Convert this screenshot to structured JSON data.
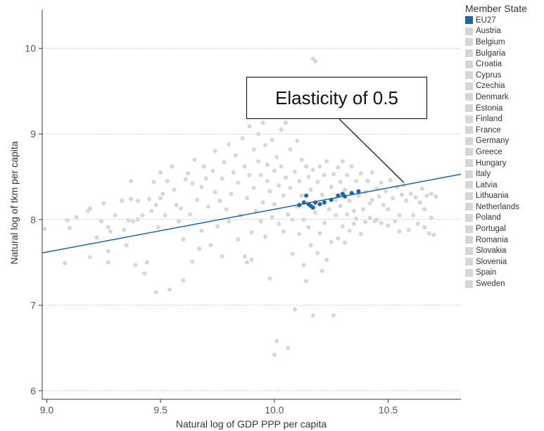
{
  "chart_data": {
    "type": "scatter",
    "title": "",
    "xlabel": "Natural log of GDP PPP per capita",
    "ylabel": "Natural log of tkm per capita",
    "xlim": [
      8.98,
      10.82
    ],
    "ylim": [
      5.9,
      10.45
    ],
    "xticks": [
      "9.0",
      "9.5",
      "10.0",
      "10.5"
    ],
    "yticks": [
      "6",
      "7",
      "8",
      "9",
      "10"
    ],
    "grid": "horizontal dotted",
    "legend": {
      "title": "Member State",
      "placement": "right",
      "entries": [
        {
          "name": "EU27",
          "color": "#1f63a8"
        },
        {
          "name": "Austria",
          "color": "#d6d6d6"
        },
        {
          "name": "Belgium",
          "color": "#d6d6d6"
        },
        {
          "name": "Bulgaria",
          "color": "#d6d6d6"
        },
        {
          "name": "Croatia",
          "color": "#d6d6d6"
        },
        {
          "name": "Cyprus",
          "color": "#d6d6d6"
        },
        {
          "name": "Czechia",
          "color": "#d6d6d6"
        },
        {
          "name": "Denmark",
          "color": "#d6d6d6"
        },
        {
          "name": "Estonia",
          "color": "#d6d6d6"
        },
        {
          "name": "Finland",
          "color": "#d6d6d6"
        },
        {
          "name": "France",
          "color": "#d6d6d6"
        },
        {
          "name": "Germany",
          "color": "#d6d6d6"
        },
        {
          "name": "Greece",
          "color": "#d6d6d6"
        },
        {
          "name": "Hungary",
          "color": "#d6d6d6"
        },
        {
          "name": "Italy",
          "color": "#d6d6d6"
        },
        {
          "name": "Latvia",
          "color": "#d6d6d6"
        },
        {
          "name": "Lithuania",
          "color": "#d6d6d6"
        },
        {
          "name": "Netherlands",
          "color": "#d6d6d6"
        },
        {
          "name": "Poland",
          "color": "#d6d6d6"
        },
        {
          "name": "Portugal",
          "color": "#d6d6d6"
        },
        {
          "name": "Romania",
          "color": "#d6d6d6"
        },
        {
          "name": "Slovakia",
          "color": "#d6d6d6"
        },
        {
          "name": "Slovenia",
          "color": "#d6d6d6"
        },
        {
          "name": "Spain",
          "color": "#d6d6d6"
        },
        {
          "name": "Sweden",
          "color": "#d6d6d6"
        }
      ]
    },
    "annotation": {
      "text": "Elasticity of 0.5",
      "points_to": [
        10.57,
        8.43
      ]
    },
    "trend_line": {
      "color": "#1f63a8",
      "points": [
        [
          8.98,
          7.61
        ],
        [
          10.82,
          8.53
        ]
      ]
    },
    "series": [
      {
        "name": "EU27",
        "color": "#1f63a8",
        "points": [
          [
            10.11,
            8.17
          ],
          [
            10.13,
            8.2
          ],
          [
            10.14,
            8.28
          ],
          [
            10.15,
            8.18
          ],
          [
            10.16,
            8.16
          ],
          [
            10.17,
            8.14
          ],
          [
            10.18,
            8.2
          ],
          [
            10.2,
            8.18
          ],
          [
            10.22,
            8.2
          ],
          [
            10.25,
            8.23
          ],
          [
            10.28,
            8.28
          ],
          [
            10.3,
            8.3
          ],
          [
            10.31,
            8.27
          ],
          [
            10.34,
            8.31
          ],
          [
            10.37,
            8.33
          ]
        ]
      },
      {
        "name": "Member states",
        "color": "#d6d6d6",
        "points": [
          [
            8.99,
            7.89
          ],
          [
            9.08,
            7.49
          ],
          [
            9.09,
            7.99
          ],
          [
            9.1,
            7.9
          ],
          [
            9.13,
            8.03
          ],
          [
            9.18,
            8.1
          ],
          [
            9.19,
            8.13
          ],
          [
            9.19,
            7.56
          ],
          [
            9.22,
            7.79
          ],
          [
            9.24,
            7.98
          ],
          [
            9.25,
            8.19
          ],
          [
            9.27,
            7.5
          ],
          [
            9.27,
            7.63
          ],
          [
            9.27,
            7.91
          ],
          [
            9.28,
            7.86
          ],
          [
            9.3,
            8.05
          ],
          [
            9.33,
            8.22
          ],
          [
            9.34,
            7.88
          ],
          [
            9.35,
            7.7
          ],
          [
            9.36,
            7.99
          ],
          [
            9.37,
            8.45
          ],
          [
            9.37,
            8.24
          ],
          [
            9.38,
            7.98
          ],
          [
            9.39,
            7.47
          ],
          [
            9.4,
            8.0
          ],
          [
            9.4,
            8.22
          ],
          [
            9.42,
            8.05
          ],
          [
            9.43,
            7.37
          ],
          [
            9.44,
            7.5
          ],
          [
            9.45,
            8.24
          ],
          [
            9.46,
            8.1
          ],
          [
            9.47,
            8.44
          ],
          [
            9.48,
            8.17
          ],
          [
            9.48,
            7.15
          ],
          [
            9.49,
            7.91
          ],
          [
            9.5,
            8.55
          ],
          [
            9.5,
            8.25
          ],
          [
            9.51,
            8.3
          ],
          [
            9.52,
            8.05
          ],
          [
            9.53,
            8.45
          ],
          [
            9.54,
            7.18
          ],
          [
            9.55,
            8.62
          ],
          [
            9.56,
            8.35
          ],
          [
            9.57,
            8.17
          ],
          [
            9.58,
            7.98
          ],
          [
            9.59,
            8.13
          ],
          [
            9.6,
            7.77
          ],
          [
            9.6,
            7.29
          ],
          [
            9.61,
            8.47
          ],
          [
            9.62,
            8.54
          ],
          [
            9.63,
            8.06
          ],
          [
            9.64,
            8.42
          ],
          [
            9.64,
            7.51
          ],
          [
            9.65,
            8.7
          ],
          [
            9.66,
            8.23
          ],
          [
            9.67,
            7.66
          ],
          [
            9.68,
            8.38
          ],
          [
            9.68,
            7.87
          ],
          [
            9.69,
            8.62
          ],
          [
            9.7,
            8.48
          ],
          [
            9.71,
            8.15
          ],
          [
            9.72,
            7.7
          ],
          [
            9.73,
            8.57
          ],
          [
            9.74,
            8.8
          ],
          [
            9.74,
            8.32
          ],
          [
            9.75,
            7.92
          ],
          [
            9.76,
            8.22
          ],
          [
            9.77,
            8.48
          ],
          [
            9.77,
            7.57
          ],
          [
            9.78,
            8.67
          ],
          [
            9.79,
            8.12
          ],
          [
            9.8,
            7.98
          ],
          [
            9.8,
            8.88
          ],
          [
            9.81,
            8.3
          ],
          [
            9.82,
            8.55
          ],
          [
            9.83,
            8.75
          ],
          [
            9.84,
            7.77
          ],
          [
            9.84,
            8.43
          ],
          [
            9.85,
            8.05
          ],
          [
            9.86,
            8.95
          ],
          [
            9.87,
            8.62
          ],
          [
            9.87,
            7.57
          ],
          [
            9.88,
            8.25
          ],
          [
            9.88,
            7.5
          ],
          [
            9.89,
            9.09
          ],
          [
            9.89,
            8.52
          ],
          [
            9.9,
            7.85
          ],
          [
            9.9,
            7.53
          ],
          [
            9.91,
            8.82
          ],
          [
            9.91,
            8.37
          ],
          [
            9.92,
            8.1
          ],
          [
            9.93,
            8.68
          ],
          [
            9.93,
            9.0
          ],
          [
            9.94,
            7.98
          ],
          [
            9.94,
            8.52
          ],
          [
            9.95,
            8.2
          ],
          [
            9.95,
            9.13
          ],
          [
            9.96,
            8.87
          ],
          [
            9.96,
            7.8
          ],
          [
            9.97,
            8.45
          ],
          [
            9.97,
            8.64
          ],
          [
            9.98,
            8.33
          ],
          [
            9.98,
            7.31
          ],
          [
            9.99,
            8.93
          ],
          [
            9.99,
            8.03
          ],
          [
            10.0,
            8.57
          ],
          [
            10.0,
            8.18
          ],
          [
            10.0,
            6.42
          ],
          [
            10.01,
            8.73
          ],
          [
            10.01,
            6.58
          ],
          [
            10.02,
            8.4
          ],
          [
            10.02,
            7.95
          ],
          [
            10.03,
            9.05
          ],
          [
            10.03,
            8.62
          ],
          [
            10.04,
            8.28
          ],
          [
            10.04,
            7.86
          ],
          [
            10.05,
            9.13
          ],
          [
            10.05,
            8.49
          ],
          [
            10.06,
            8.06
          ],
          [
            10.06,
            6.5
          ],
          [
            10.07,
            8.82
          ],
          [
            10.07,
            8.37
          ],
          [
            10.08,
            7.6
          ],
          [
            10.08,
            8.0
          ],
          [
            10.09,
            8.56
          ],
          [
            10.09,
            6.95
          ],
          [
            10.1,
            8.15
          ],
          [
            10.1,
            8.92
          ],
          [
            10.11,
            8.45
          ],
          [
            10.11,
            7.83
          ],
          [
            10.12,
            8.7
          ],
          [
            10.12,
            8.28
          ],
          [
            10.13,
            8.0
          ],
          [
            10.13,
            7.47
          ],
          [
            10.14,
            8.62
          ],
          [
            10.14,
            7.28
          ],
          [
            10.15,
            7.91
          ],
          [
            10.15,
            8.5
          ],
          [
            10.16,
            8.35
          ],
          [
            10.16,
            7.7
          ],
          [
            10.17,
            9.88
          ],
          [
            10.17,
            8.58
          ],
          [
            10.17,
            6.88
          ],
          [
            10.18,
            9.85
          ],
          [
            10.18,
            8.08
          ],
          [
            10.19,
            8.44
          ],
          [
            10.19,
            7.61
          ],
          [
            10.2,
            7.84
          ],
          [
            10.2,
            8.62
          ],
          [
            10.21,
            7.4
          ],
          [
            10.21,
            8.29
          ],
          [
            10.22,
            8.52
          ],
          [
            10.22,
            7.96
          ],
          [
            10.23,
            7.53
          ],
          [
            10.23,
            8.68
          ],
          [
            10.24,
            8.12
          ],
          [
            10.25,
            8.38
          ],
          [
            10.25,
            7.74
          ],
          [
            10.26,
            8.53
          ],
          [
            10.26,
            6.88
          ],
          [
            10.27,
            8.05
          ],
          [
            10.27,
            8.23
          ],
          [
            10.28,
            8.61
          ],
          [
            10.28,
            7.78
          ],
          [
            10.29,
            8.44
          ],
          [
            10.29,
            8.16
          ],
          [
            10.3,
            7.92
          ],
          [
            10.3,
            8.68
          ],
          [
            10.31,
            8.35
          ],
          [
            10.31,
            7.73
          ],
          [
            10.32,
            8.52
          ],
          [
            10.32,
            8.06
          ],
          [
            10.33,
            8.22
          ],
          [
            10.33,
            7.87
          ],
          [
            10.34,
            8.62
          ],
          [
            10.35,
            8.1
          ],
          [
            10.35,
            7.95
          ],
          [
            10.36,
            8.45
          ],
          [
            10.36,
            8.01
          ],
          [
            10.37,
            8.28
          ],
          [
            10.38,
            7.83
          ],
          [
            10.38,
            8.54
          ],
          [
            10.39,
            8.12
          ],
          [
            10.4,
            8.32
          ],
          [
            10.4,
            7.97
          ],
          [
            10.41,
            8.45
          ],
          [
            10.42,
            8.19
          ],
          [
            10.42,
            8.02
          ],
          [
            10.43,
            8.55
          ],
          [
            10.43,
            8.23
          ],
          [
            10.44,
            7.98
          ],
          [
            10.45,
            8.36
          ],
          [
            10.45,
            8.0
          ],
          [
            10.46,
            8.27
          ],
          [
            10.47,
            8.43
          ],
          [
            10.47,
            7.96
          ],
          [
            10.48,
            8.17
          ],
          [
            10.49,
            8.33
          ],
          [
            10.5,
            7.93
          ],
          [
            10.5,
            8.12
          ],
          [
            10.51,
            8.46
          ],
          [
            10.52,
            8.25
          ],
          [
            10.53,
            7.98
          ],
          [
            10.54,
            8.38
          ],
          [
            10.55,
            8.05
          ],
          [
            10.55,
            7.86
          ],
          [
            10.56,
            8.29
          ],
          [
            10.57,
            8.4
          ],
          [
            10.58,
            8.22
          ],
          [
            10.59,
            7.88
          ],
          [
            10.6,
            8.3
          ],
          [
            10.61,
            8.05
          ],
          [
            10.62,
            8.26
          ],
          [
            10.63,
            7.95
          ],
          [
            10.64,
            8.2
          ],
          [
            10.65,
            8.36
          ],
          [
            10.66,
            7.91
          ],
          [
            10.66,
            8.12
          ],
          [
            10.67,
            8.28
          ],
          [
            10.68,
            7.84
          ],
          [
            10.69,
            8.3
          ],
          [
            10.69,
            8.02
          ],
          [
            10.7,
            7.82
          ],
          [
            10.71,
            8.27
          ]
        ]
      }
    ]
  }
}
